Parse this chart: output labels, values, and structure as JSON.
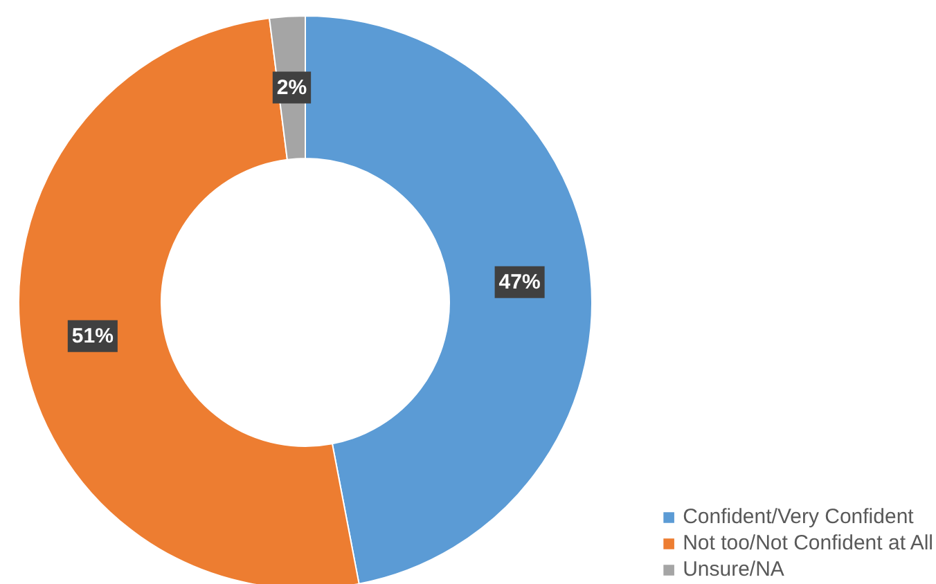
{
  "chart_data": {
    "type": "donut",
    "categories": [
      "Confident/Very Confident",
      "Not too/Not Confident at All",
      "Unsure/NA"
    ],
    "values": [
      47,
      51,
      2
    ],
    "colors": [
      "#5b9bd5",
      "#ed7d31",
      "#a5a5a5"
    ],
    "value_labels": [
      "47%",
      "51%",
      "2%"
    ],
    "legend": "bottom right"
  }
}
